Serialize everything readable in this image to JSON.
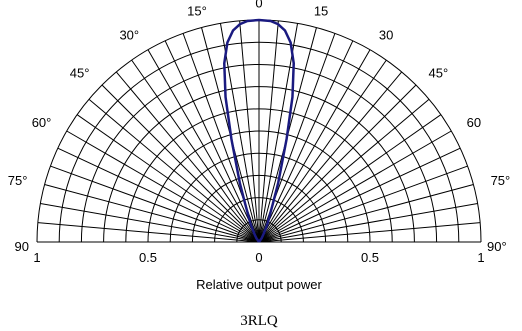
{
  "chart_data": {
    "type": "polar-line",
    "title": "",
    "caption": "3RLQ",
    "xlabel": "Relative output power",
    "r_range": [
      0,
      1
    ],
    "theta_range": [
      -90,
      90
    ],
    "radial_grid": [
      0.1,
      0.2,
      0.3,
      0.4,
      0.5,
      0.6,
      0.7,
      0.8,
      0.9,
      1.0
    ],
    "angle_grid_step": 5,
    "angle_labels": [
      {
        "angle": -90,
        "text": "90"
      },
      {
        "angle": -75,
        "text": "75°"
      },
      {
        "angle": -60,
        "text": "60°"
      },
      {
        "angle": -45,
        "text": "45°"
      },
      {
        "angle": -30,
        "text": "30°"
      },
      {
        "angle": -15,
        "text": "15°"
      },
      {
        "angle": 0,
        "text": "0"
      },
      {
        "angle": 15,
        "text": "15"
      },
      {
        "angle": 30,
        "text": "30"
      },
      {
        "angle": 45,
        "text": "45°"
      },
      {
        "angle": 60,
        "text": "60"
      },
      {
        "angle": 75,
        "text": "75°"
      },
      {
        "angle": 90,
        "text": "90°"
      }
    ],
    "x_tick_labels": [
      {
        "value": -1,
        "text": "1"
      },
      {
        "value": -0.5,
        "text": "0.5"
      },
      {
        "value": 0,
        "text": "0"
      },
      {
        "value": 0.5,
        "text": "0.5"
      },
      {
        "value": 1,
        "text": "1"
      }
    ],
    "series_color": "#1a1a80",
    "series": [
      {
        "angles": [
          -90,
          -60,
          -45,
          -35,
          -30,
          -25,
          -20,
          -18,
          -15,
          -13,
          -11,
          -9,
          -7,
          -5,
          -3,
          0,
          3,
          5,
          7,
          9,
          11,
          13,
          15,
          18,
          20,
          25,
          30,
          35,
          45,
          60,
          90
        ],
        "values": [
          0,
          0,
          0,
          0.02,
          0.04,
          0.09,
          0.18,
          0.28,
          0.48,
          0.67,
          0.82,
          0.91,
          0.96,
          0.985,
          0.997,
          1.0,
          0.997,
          0.985,
          0.96,
          0.91,
          0.82,
          0.67,
          0.48,
          0.28,
          0.18,
          0.09,
          0.04,
          0.02,
          0,
          0,
          0
        ]
      }
    ]
  }
}
